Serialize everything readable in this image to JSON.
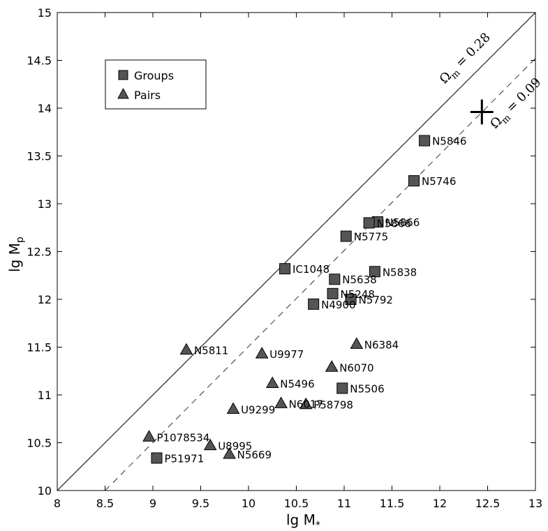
{
  "chart_data": {
    "type": "scatter",
    "xlabel": "lg M",
    "xlabel_sub": "*",
    "ylabel": "lg M",
    "ylabel_sub": "p",
    "xlim": [
      8,
      13
    ],
    "ylim": [
      10,
      15
    ],
    "x_ticks": [
      8,
      8.5,
      9,
      9.5,
      10,
      10.5,
      11,
      11.5,
      12,
      12.5,
      13
    ],
    "x_tick_labels": [
      "8",
      "8.5",
      "9",
      "9.5",
      "10",
      "10.5",
      "11",
      "11.5",
      "12",
      "12.5",
      "13"
    ],
    "y_ticks": [
      10,
      10.5,
      11,
      11.5,
      12,
      12.5,
      13,
      13.5,
      14,
      14.5,
      15
    ],
    "y_tick_labels": [
      "10",
      "10.5",
      "11",
      "11.5",
      "12",
      "12.5",
      "13",
      "13.5",
      "14",
      "14.5",
      "15"
    ],
    "grid": false,
    "legend_position": "top-left",
    "series": [
      {
        "name": "Groups",
        "marker": "square",
        "color": "#555555",
        "points": [
          {
            "label": "N5846",
            "x": 11.84,
            "y": 13.66
          },
          {
            "label": "N5746",
            "x": 11.73,
            "y": 13.24
          },
          {
            "label": "N5866",
            "x": 11.35,
            "y": 12.81
          },
          {
            "label": "N5866",
            "x": 11.26,
            "y": 12.8
          },
          {
            "label": "N5775",
            "x": 11.02,
            "y": 12.66
          },
          {
            "label": "IC1048",
            "x": 10.38,
            "y": 12.32
          },
          {
            "label": "N5838",
            "x": 11.32,
            "y": 12.29
          },
          {
            "label": "N5638",
            "x": 10.9,
            "y": 12.21
          },
          {
            "label": "N5248",
            "x": 10.88,
            "y": 12.06
          },
          {
            "label": "N5792",
            "x": 11.07,
            "y": 12.0
          },
          {
            "label": "N4900",
            "x": 10.68,
            "y": 11.95
          },
          {
            "label": "N5506",
            "x": 10.98,
            "y": 11.07
          },
          {
            "label": "P51971",
            "x": 9.04,
            "y": 10.34
          }
        ]
      },
      {
        "name": "Pairs",
        "marker": "triangle",
        "color": "#555555",
        "points": [
          {
            "label": "N5811",
            "x": 9.35,
            "y": 11.47
          },
          {
            "label": "U9977",
            "x": 10.14,
            "y": 11.43
          },
          {
            "label": "N6384",
            "x": 11.13,
            "y": 11.53
          },
          {
            "label": "N6070",
            "x": 10.87,
            "y": 11.29
          },
          {
            "label": "N5496",
            "x": 10.25,
            "y": 11.12
          },
          {
            "label": "N6017",
            "x": 10.34,
            "y": 10.91
          },
          {
            "label": "P58798",
            "x": 10.6,
            "y": 10.9
          },
          {
            "label": "U9299",
            "x": 9.84,
            "y": 10.85
          },
          {
            "label": "P1078534",
            "x": 8.96,
            "y": 10.56
          },
          {
            "label": "U8995",
            "x": 9.6,
            "y": 10.47
          },
          {
            "label": "N5669",
            "x": 9.8,
            "y": 10.38
          }
        ]
      }
    ],
    "reference_lines": [
      {
        "label": "Ω",
        "label_sub": "m",
        "label_value": " = 0.28",
        "style": "solid",
        "x1": 8,
        "y1": 10,
        "x2": 13,
        "y2": 15
      },
      {
        "label": "Ω",
        "label_sub": "m",
        "label_value": " = 0.09",
        "style": "dashed",
        "x1": 8.5,
        "y1": 10,
        "x2": 13,
        "y2": 14.52
      }
    ],
    "error_cross": {
      "x": 12.44,
      "y": 13.96,
      "x_err": 0.12,
      "y_err": 0.13
    }
  }
}
